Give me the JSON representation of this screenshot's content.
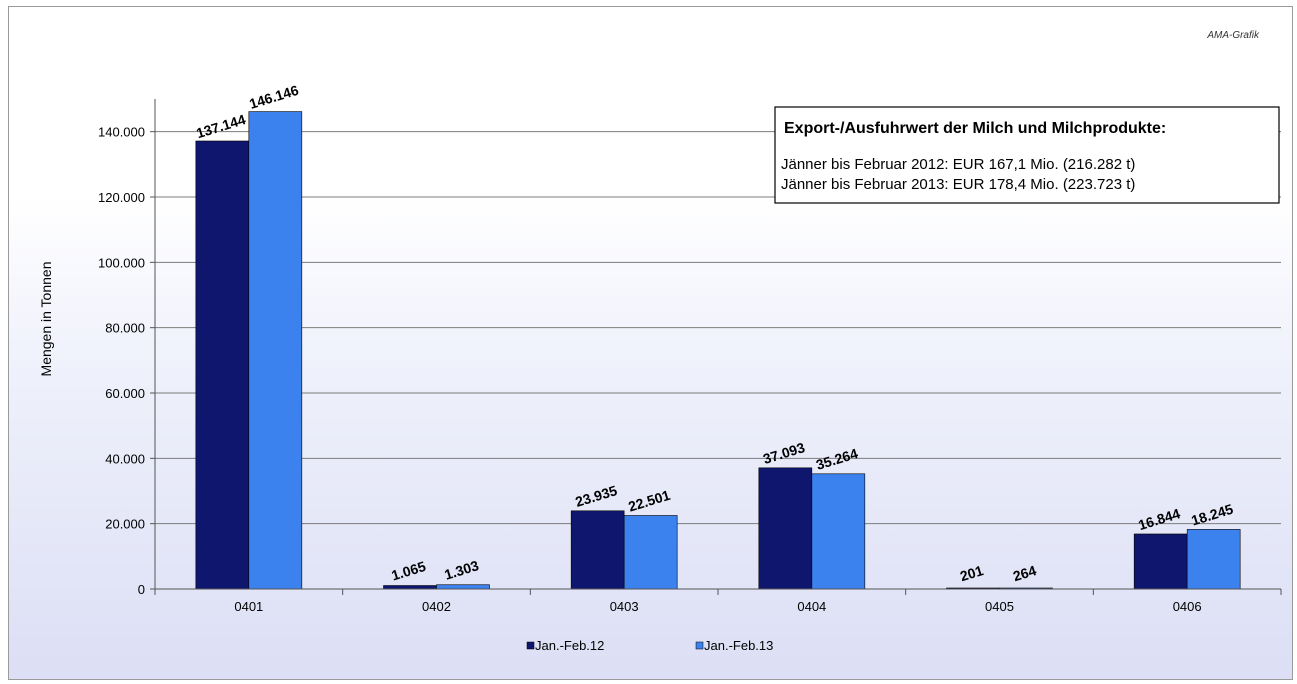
{
  "credit": "AMA-Grafik",
  "colors": {
    "series1": "#0f166e",
    "series2": "#3c82ef",
    "grid": "#7d7d7d",
    "axis": "#555555"
  },
  "info_box": {
    "title": "Export-/Ausfuhrwert der Milch und Milchprodukte:",
    "lines": [
      "Jänner bis Februar 2012: EUR 167,1 Mio. (216.282 t)",
      "Jänner bis Februar 2013: EUR 178,4 Mio. (223.723 t)"
    ]
  },
  "chart_data": {
    "type": "bar",
    "title": "",
    "xlabel": "",
    "ylabel": "Mengen in Tonnen",
    "ylim": [
      0,
      150000
    ],
    "yticks": [
      0,
      20000,
      40000,
      60000,
      80000,
      100000,
      120000,
      140000
    ],
    "ytick_labels": [
      "0",
      "20.000",
      "40.000",
      "60.000",
      "80.000",
      "100.000",
      "120.000",
      "140.000"
    ],
    "grid": true,
    "legend_position": "bottom-center",
    "categories": [
      "0401",
      "0402",
      "0403",
      "0404",
      "0405",
      "0406"
    ],
    "series": [
      {
        "name": "Jan.-Feb.12",
        "values": [
          137144,
          1065,
          23935,
          37093,
          201,
          16844
        ],
        "labels": [
          "137.144",
          "1.065",
          "23.935",
          "37.093",
          "201",
          "16.844"
        ]
      },
      {
        "name": "Jan.-Feb.13",
        "values": [
          146146,
          1303,
          22501,
          35264,
          264,
          18245
        ],
        "labels": [
          "146.146",
          "1.303",
          "22.501",
          "35.264",
          "264",
          "18.245"
        ]
      }
    ]
  }
}
